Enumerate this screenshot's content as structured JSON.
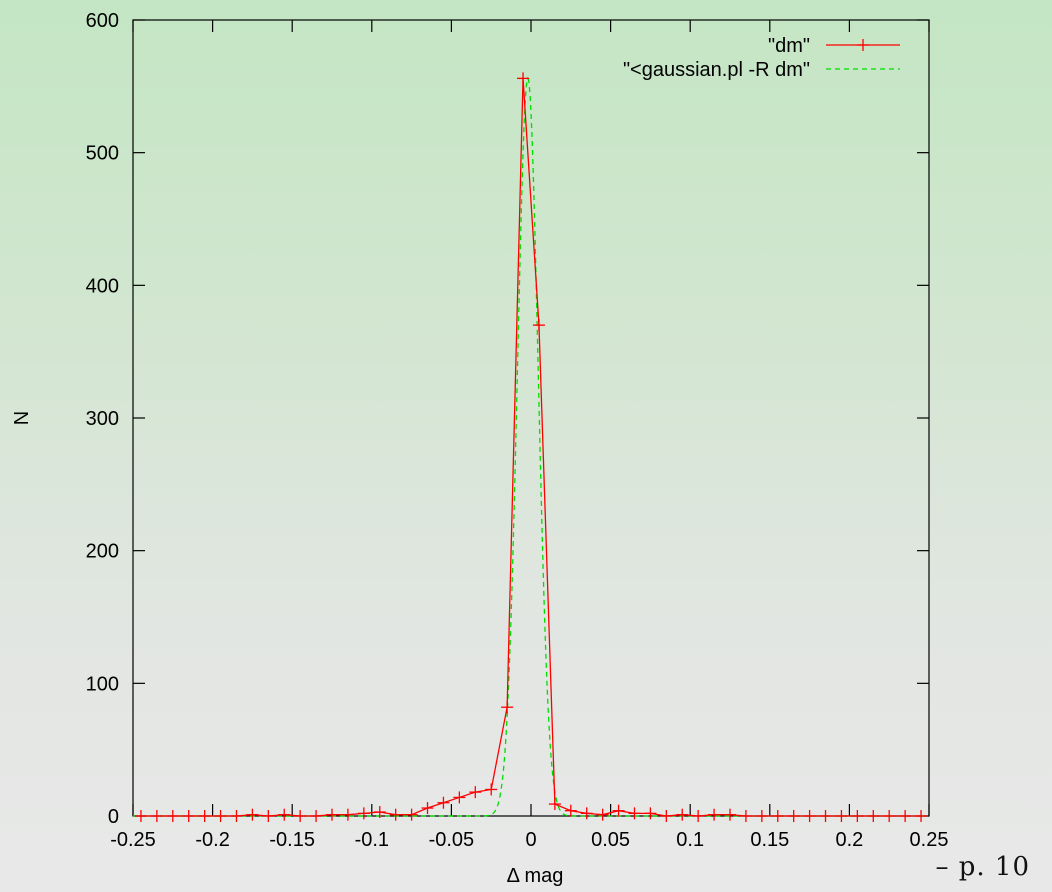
{
  "page": {
    "number_label": "– p. 10"
  },
  "chart_data": {
    "type": "line",
    "xlabel": "Δ mag",
    "ylabel": "N",
    "xlim": [
      -0.25,
      0.25
    ],
    "ylim": [
      0,
      600
    ],
    "x_ticks": [
      "-0.25",
      "-0.2",
      "-0.15",
      "-0.1",
      "-0.05",
      "0",
      "0.05",
      "0.1",
      "0.15",
      "0.2",
      "0.25"
    ],
    "y_ticks": [
      "0",
      "100",
      "200",
      "300",
      "400",
      "500",
      "600"
    ],
    "legend_position": "top-right",
    "grid": false,
    "series": [
      {
        "name": "\"dm\"",
        "color": "#ff0000",
        "style": "line-with-plus-markers",
        "x": [
          -0.245,
          -0.235,
          -0.225,
          -0.215,
          -0.205,
          -0.195,
          -0.185,
          -0.175,
          -0.165,
          -0.155,
          -0.145,
          -0.135,
          -0.125,
          -0.115,
          -0.105,
          -0.095,
          -0.085,
          -0.075,
          -0.065,
          -0.055,
          -0.045,
          -0.035,
          -0.025,
          -0.015,
          -0.005,
          0.005,
          0.015,
          0.025,
          0.035,
          0.045,
          0.055,
          0.065,
          0.075,
          0.085,
          0.095,
          0.105,
          0.115,
          0.125,
          0.135,
          0.145,
          0.155,
          0.165,
          0.175,
          0.185,
          0.195,
          0.205,
          0.215,
          0.225,
          0.235,
          0.245
        ],
        "y": [
          0,
          0,
          0,
          0,
          0,
          0,
          0,
          1,
          0,
          1,
          0,
          0,
          1,
          1,
          2,
          3,
          1,
          1,
          6,
          10,
          14,
          18,
          20,
          82,
          556,
          370,
          9,
          4,
          2,
          1,
          4,
          2,
          2,
          0,
          1,
          0,
          1,
          1,
          0,
          0,
          0,
          0,
          0,
          0,
          0,
          0,
          0,
          0,
          0,
          0
        ]
      },
      {
        "name": "\"<gaussian.pl -R dm\"",
        "color": "#00dd00",
        "style": "dashed",
        "gaussian": {
          "amplitude": 556,
          "mean": -0.002,
          "sigma": 0.0065
        }
      }
    ]
  }
}
